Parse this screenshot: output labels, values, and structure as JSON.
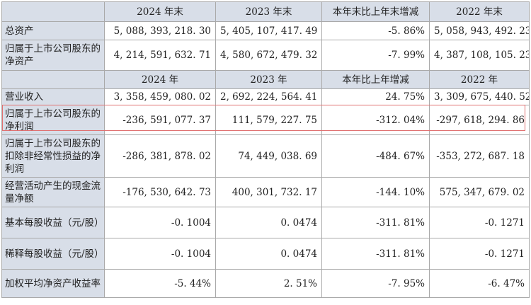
{
  "header1": [
    "",
    "2024 年末",
    "2023 年末",
    "本年末比上年末增减",
    "2022 年末"
  ],
  "header2": [
    "",
    "2024 年",
    "2023 年",
    "本年比上年增减",
    "2022 年"
  ],
  "rows_balance": [
    {
      "label": "总资产",
      "values": [
        "5, 088, 393, 218. 30",
        "5, 405, 107, 417. 49",
        "-5. 86%",
        "5, 058, 943, 492. 23"
      ]
    },
    {
      "label": "归属于上市公司股东的净资产",
      "values": [
        "4, 214, 591, 632. 71",
        "4, 580, 672, 479. 32",
        "-7. 99%",
        "4, 387, 108, 105. 23"
      ]
    }
  ],
  "rows_income": [
    {
      "label": "营业收入",
      "values": [
        "3, 358, 459, 080. 02",
        "2, 692, 224, 564. 41",
        "24. 75%",
        "3, 309, 675, 440. 52"
      ]
    },
    {
      "label": "归属于上市公司股东的净利润",
      "values": [
        "-236, 591, 077. 37",
        "111, 579, 227. 75",
        "-312. 04%",
        "-297, 618, 294. 86"
      ]
    },
    {
      "label": "归属于上市公司股东的扣除非经常性损益的净利润",
      "values": [
        "-286, 381, 878. 02",
        "74, 449, 038. 69",
        "-484. 67%",
        "-353, 272, 687. 18"
      ]
    },
    {
      "label": "经营活动产生的现金流量净额",
      "values": [
        "-176, 530, 642. 73",
        "400, 301, 732. 17",
        "-144. 10%",
        "575, 347, 679. 02"
      ]
    },
    {
      "label": "基本每股收益（元/股）",
      "values": [
        "-0. 1004",
        "0. 0474",
        "-311. 81%",
        "-0. 1271"
      ]
    },
    {
      "label": "稀释每股收益（元/股）",
      "values": [
        "-0. 1004",
        "0. 0474",
        "-311. 81%",
        "-0. 1271"
      ]
    },
    {
      "label": "加权平均净资产收益率",
      "values": [
        "-5. 44%",
        "2. 51%",
        "-7. 95%",
        "-6. 47%"
      ]
    }
  ],
  "colors": {
    "header_bg": "#d8dee8",
    "border": "#a9a9a9",
    "highlight": "#e07070"
  }
}
